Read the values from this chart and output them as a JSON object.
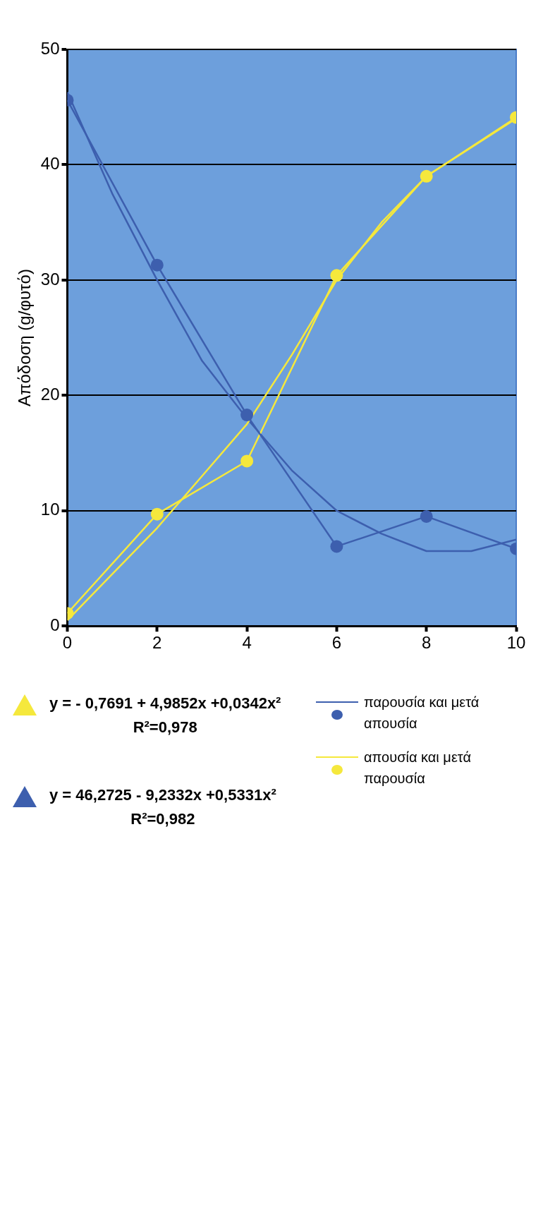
{
  "chart_data": {
    "type": "line",
    "ylabel": "Απόδοση (g/φυτό)",
    "x": [
      0,
      2,
      4,
      6,
      8,
      10
    ],
    "xlim": [
      0,
      10
    ],
    "xticks": [
      0,
      2,
      4,
      6,
      8,
      10
    ],
    "ylim": [
      0,
      50
    ],
    "yticks": [
      0,
      10,
      20,
      30,
      40,
      50
    ],
    "grid": "y",
    "legend": "right",
    "marker": "circle",
    "line_style": "solid",
    "series": [
      {
        "name": "παρουσία και μετά απουσία",
        "color": "#3d5fae",
        "values": [
          45.6,
          31.3,
          18.3,
          6.9,
          9.5,
          6.7
        ]
      },
      {
        "name": "απουσία και μετά παρουσία",
        "color": "#f5e83c",
        "values": [
          1.1,
          9.7,
          14.3,
          30.4,
          39.0,
          44.1
        ]
      },
      {
        "type": "line",
        "marker": "none",
        "color": "#f5e83c",
        "x": [
          0,
          1,
          2,
          3,
          4,
          5,
          6,
          7,
          8,
          9,
          10
        ],
        "values": [
          0.5,
          4.5,
          8.5,
          13,
          17.5,
          23.5,
          30,
          35,
          39,
          41.5,
          44
        ]
      },
      {
        "type": "line",
        "marker": "none",
        "color": "#3d5fae",
        "x": [
          0,
          1,
          2,
          3,
          4,
          5,
          6,
          7,
          8,
          9,
          10
        ],
        "values": [
          46.3,
          37.5,
          30,
          23,
          18,
          13.5,
          10,
          8,
          6.5,
          6.5,
          7.5
        ]
      }
    ],
    "annotations": [
      "y = - 0,7691 + 4,9852x +0,0342x²\nR²=0,978",
      "y = 46,2725 - 9,2332x +0,5331x²\nR²=0,982"
    ]
  }
}
